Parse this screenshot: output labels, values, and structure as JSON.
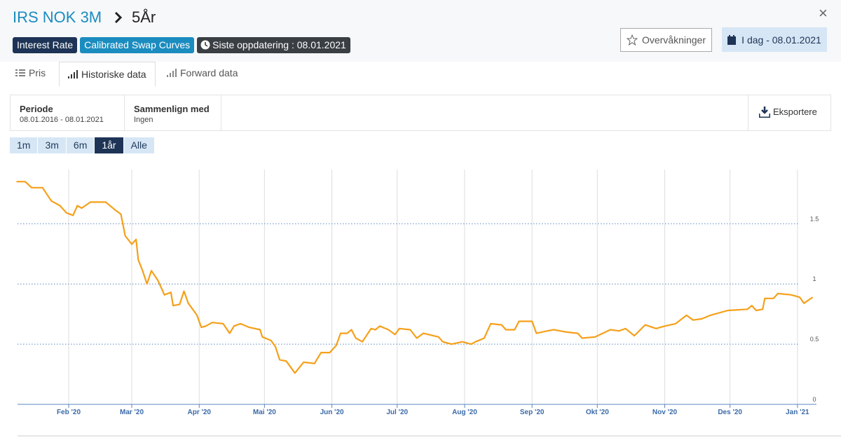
{
  "header": {
    "title": "IRS NOK 3M",
    "subtitle": "5År",
    "badges": [
      "Interest Rate",
      "Calibrated Swap Curves",
      "Siste oppdatering : 08.01.2021"
    ],
    "watch_button": "Overvåkninger",
    "date_button": "I dag - 08.01.2021"
  },
  "tabs": [
    "Pris",
    "Historiske data",
    "Forward data"
  ],
  "filters": {
    "period_label": "Periode",
    "period_value": "08.01.2016 - 08.01.2021",
    "compare_label": "Sammenlign med",
    "compare_value": "Ingen",
    "export": "Eksportere"
  },
  "ranges": [
    "1m",
    "3m",
    "6m",
    "1år",
    "Alle"
  ],
  "chart_data": {
    "type": "line",
    "color": "#f5a01a",
    "x": [
      0,
      4,
      7,
      12,
      16,
      20,
      23,
      26,
      28,
      30,
      34,
      41,
      45,
      48,
      50,
      53,
      55,
      56,
      58,
      60,
      62,
      65,
      68,
      71,
      72,
      75,
      77,
      79,
      83,
      85,
      87,
      90,
      95,
      98,
      100,
      103,
      107,
      112,
      113,
      117,
      119,
      121,
      124,
      128,
      132,
      137,
      140,
      144,
      147,
      149,
      152,
      154,
      156,
      159,
      163,
      165,
      167,
      171,
      174,
      176,
      181,
      184,
      187,
      194,
      196,
      200,
      205,
      209,
      211,
      215,
      218,
      223,
      225,
      229,
      231,
      237,
      239,
      244,
      247,
      253,
      258,
      260,
      266,
      273,
      277,
      280,
      284,
      289,
      294,
      298,
      303,
      308,
      311,
      315,
      319,
      327,
      336,
      338,
      340,
      343,
      344,
      348,
      350,
      356,
      360,
      362,
      366
    ],
    "values": [
      1.85,
      1.85,
      1.8,
      1.8,
      1.69,
      1.65,
      1.59,
      1.57,
      1.65,
      1.63,
      1.68,
      1.68,
      1.62,
      1.58,
      1.4,
      1.33,
      1.37,
      1.2,
      1.11,
      1.0,
      1.11,
      1.03,
      0.91,
      0.93,
      0.82,
      0.83,
      0.94,
      0.84,
      0.74,
      0.64,
      0.65,
      0.68,
      0.67,
      0.59,
      0.65,
      0.67,
      0.64,
      0.62,
      0.56,
      0.53,
      0.48,
      0.37,
      0.36,
      0.26,
      0.35,
      0.34,
      0.43,
      0.43,
      0.49,
      0.59,
      0.59,
      0.62,
      0.55,
      0.52,
      0.63,
      0.62,
      0.65,
      0.62,
      0.58,
      0.63,
      0.62,
      0.55,
      0.59,
      0.56,
      0.52,
      0.5,
      0.52,
      0.5,
      0.52,
      0.55,
      0.67,
      0.66,
      0.62,
      0.62,
      0.69,
      0.69,
      0.59,
      0.61,
      0.62,
      0.6,
      0.59,
      0.55,
      0.56,
      0.62,
      0.61,
      0.63,
      0.57,
      0.66,
      0.63,
      0.65,
      0.67,
      0.74,
      0.7,
      0.71,
      0.74,
      0.78,
      0.79,
      0.82,
      0.78,
      0.79,
      0.88,
      0.88,
      0.92,
      0.91,
      0.89,
      0.84,
      0.89
    ],
    "xlim": [
      0,
      366
    ],
    "xticks": [
      {
        "value": 24,
        "label": "Feb '20"
      },
      {
        "value": 53,
        "label": "Mar '20"
      },
      {
        "value": 84,
        "label": "Apr '20"
      },
      {
        "value": 114,
        "label": "Mai '20"
      },
      {
        "value": 145,
        "label": "Jun '20"
      },
      {
        "value": 175,
        "label": "Jul '20"
      },
      {
        "value": 206,
        "label": "Aug '20"
      },
      {
        "value": 237,
        "label": "Sep '20"
      },
      {
        "value": 267,
        "label": "Okt '20"
      },
      {
        "value": 298,
        "label": "Nov '20"
      },
      {
        "value": 328,
        "label": "Des '20"
      },
      {
        "value": 359,
        "label": "Jan '21"
      }
    ],
    "ylim": [
      0,
      1.95
    ],
    "yticks": [
      0,
      0.5,
      1,
      1.5
    ],
    "grid": true
  }
}
